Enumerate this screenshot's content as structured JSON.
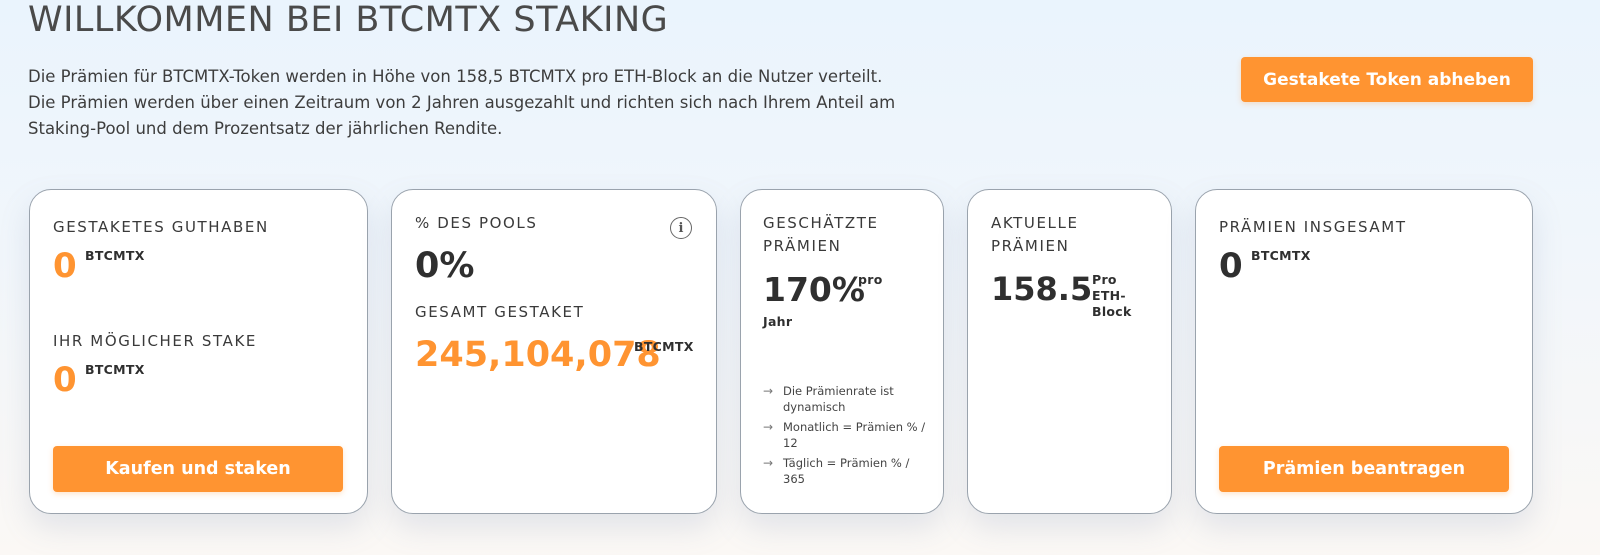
{
  "header": {
    "title": "WILLKOMMEN BEI BTCMTX STAKING",
    "intro": "Die Prämien für BTCMTX-Token werden in Höhe von 158,5 BTCMTX pro ETH-Block an die Nutzer verteilt. Die Prämien werden über einen Zeitraum von 2 Jahren ausgezahlt und richten sich nach Ihrem Anteil am Staking-Pool und dem Prozentsatz der jährlichen Rendite.",
    "withdraw_button": "Gestakete Token abheben"
  },
  "cards": {
    "staked": {
      "label": "GESTAKETES GUTHABEN",
      "value": "0",
      "unit": "BTCMTX",
      "possible_label": "IHR MÖGLICHER STAKE",
      "possible_value": "0",
      "possible_unit": "BTCMTX",
      "button": "Kaufen und staken"
    },
    "pool": {
      "label": "% DES POOLS",
      "value": "0%",
      "total_label": "GESAMT GESTAKET",
      "total_value": "245,104,078",
      "total_unit": "BTCMTX",
      "info_icon": "info-icon"
    },
    "estimated": {
      "label_line1": "GESCHÄTZTE",
      "label_line2": "PRÄMIEN",
      "value": "170%",
      "unit_line1": "pro",
      "unit_line2": "Jahr",
      "notes": [
        "Die Prämienrate ist dynamisch",
        "Monatlich = Prämien % / 12",
        "Täglich = Prämien % / 365"
      ]
    },
    "current": {
      "label_line1": "AKTUELLE",
      "label_line2": "PRÄMIEN",
      "value": "158.5",
      "unit_line1": "Pro",
      "unit_line2": "ETH-",
      "unit_line3": "Block"
    },
    "total": {
      "label": "PRÄMIEN INSGESAMT",
      "value": "0",
      "unit": "BTCMTX",
      "button": "Prämien beantragen"
    }
  },
  "colors": {
    "accent": "#ff9431",
    "text": "#2f2f2f",
    "card_border": "#9aa3ad"
  }
}
